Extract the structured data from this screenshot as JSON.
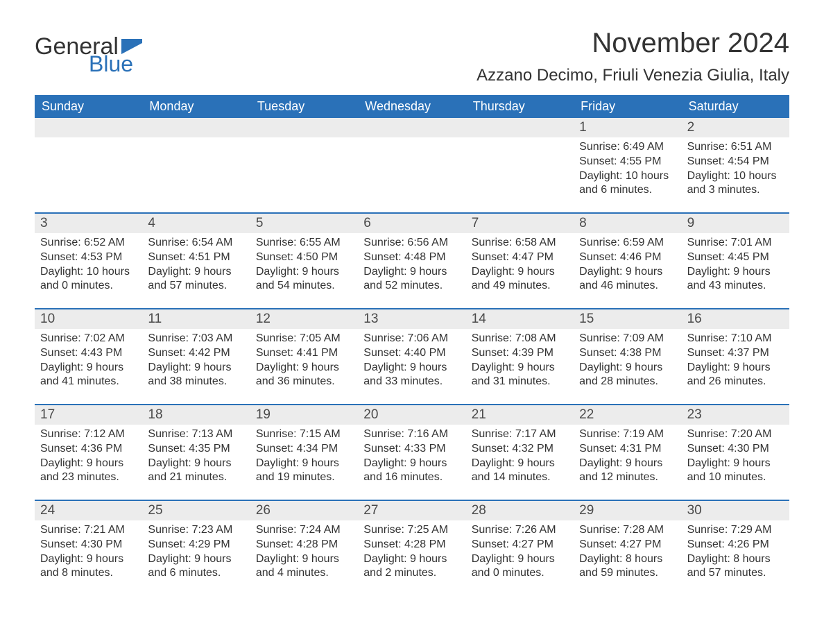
{
  "logo": {
    "general": "General",
    "blue": "Blue",
    "flag_color": "#2a71b8"
  },
  "title": "November 2024",
  "location": "Azzano Decimo, Friuli Venezia Giulia, Italy",
  "colors": {
    "header_bg": "#2a71b8",
    "header_text": "#ffffff",
    "daynum_bg": "#ececec",
    "text": "#333333",
    "row_border": "#2a71b8"
  },
  "days_of_week": [
    "Sunday",
    "Monday",
    "Tuesday",
    "Wednesday",
    "Thursday",
    "Friday",
    "Saturday"
  ],
  "weeks": [
    [
      {
        "blank": true
      },
      {
        "blank": true
      },
      {
        "blank": true
      },
      {
        "blank": true
      },
      {
        "blank": true
      },
      {
        "n": "1",
        "sr": "Sunrise: 6:49 AM",
        "ss": "Sunset: 4:55 PM",
        "dl": "Daylight: 10 hours and 6 minutes."
      },
      {
        "n": "2",
        "sr": "Sunrise: 6:51 AM",
        "ss": "Sunset: 4:54 PM",
        "dl": "Daylight: 10 hours and 3 minutes."
      }
    ],
    [
      {
        "n": "3",
        "sr": "Sunrise: 6:52 AM",
        "ss": "Sunset: 4:53 PM",
        "dl": "Daylight: 10 hours and 0 minutes."
      },
      {
        "n": "4",
        "sr": "Sunrise: 6:54 AM",
        "ss": "Sunset: 4:51 PM",
        "dl": "Daylight: 9 hours and 57 minutes."
      },
      {
        "n": "5",
        "sr": "Sunrise: 6:55 AM",
        "ss": "Sunset: 4:50 PM",
        "dl": "Daylight: 9 hours and 54 minutes."
      },
      {
        "n": "6",
        "sr": "Sunrise: 6:56 AM",
        "ss": "Sunset: 4:48 PM",
        "dl": "Daylight: 9 hours and 52 minutes."
      },
      {
        "n": "7",
        "sr": "Sunrise: 6:58 AM",
        "ss": "Sunset: 4:47 PM",
        "dl": "Daylight: 9 hours and 49 minutes."
      },
      {
        "n": "8",
        "sr": "Sunrise: 6:59 AM",
        "ss": "Sunset: 4:46 PM",
        "dl": "Daylight: 9 hours and 46 minutes."
      },
      {
        "n": "9",
        "sr": "Sunrise: 7:01 AM",
        "ss": "Sunset: 4:45 PM",
        "dl": "Daylight: 9 hours and 43 minutes."
      }
    ],
    [
      {
        "n": "10",
        "sr": "Sunrise: 7:02 AM",
        "ss": "Sunset: 4:43 PM",
        "dl": "Daylight: 9 hours and 41 minutes."
      },
      {
        "n": "11",
        "sr": "Sunrise: 7:03 AM",
        "ss": "Sunset: 4:42 PM",
        "dl": "Daylight: 9 hours and 38 minutes."
      },
      {
        "n": "12",
        "sr": "Sunrise: 7:05 AM",
        "ss": "Sunset: 4:41 PM",
        "dl": "Daylight: 9 hours and 36 minutes."
      },
      {
        "n": "13",
        "sr": "Sunrise: 7:06 AM",
        "ss": "Sunset: 4:40 PM",
        "dl": "Daylight: 9 hours and 33 minutes."
      },
      {
        "n": "14",
        "sr": "Sunrise: 7:08 AM",
        "ss": "Sunset: 4:39 PM",
        "dl": "Daylight: 9 hours and 31 minutes."
      },
      {
        "n": "15",
        "sr": "Sunrise: 7:09 AM",
        "ss": "Sunset: 4:38 PM",
        "dl": "Daylight: 9 hours and 28 minutes."
      },
      {
        "n": "16",
        "sr": "Sunrise: 7:10 AM",
        "ss": "Sunset: 4:37 PM",
        "dl": "Daylight: 9 hours and 26 minutes."
      }
    ],
    [
      {
        "n": "17",
        "sr": "Sunrise: 7:12 AM",
        "ss": "Sunset: 4:36 PM",
        "dl": "Daylight: 9 hours and 23 minutes."
      },
      {
        "n": "18",
        "sr": "Sunrise: 7:13 AM",
        "ss": "Sunset: 4:35 PM",
        "dl": "Daylight: 9 hours and 21 minutes."
      },
      {
        "n": "19",
        "sr": "Sunrise: 7:15 AM",
        "ss": "Sunset: 4:34 PM",
        "dl": "Daylight: 9 hours and 19 minutes."
      },
      {
        "n": "20",
        "sr": "Sunrise: 7:16 AM",
        "ss": "Sunset: 4:33 PM",
        "dl": "Daylight: 9 hours and 16 minutes."
      },
      {
        "n": "21",
        "sr": "Sunrise: 7:17 AM",
        "ss": "Sunset: 4:32 PM",
        "dl": "Daylight: 9 hours and 14 minutes."
      },
      {
        "n": "22",
        "sr": "Sunrise: 7:19 AM",
        "ss": "Sunset: 4:31 PM",
        "dl": "Daylight: 9 hours and 12 minutes."
      },
      {
        "n": "23",
        "sr": "Sunrise: 7:20 AM",
        "ss": "Sunset: 4:30 PM",
        "dl": "Daylight: 9 hours and 10 minutes."
      }
    ],
    [
      {
        "n": "24",
        "sr": "Sunrise: 7:21 AM",
        "ss": "Sunset: 4:30 PM",
        "dl": "Daylight: 9 hours and 8 minutes."
      },
      {
        "n": "25",
        "sr": "Sunrise: 7:23 AM",
        "ss": "Sunset: 4:29 PM",
        "dl": "Daylight: 9 hours and 6 minutes."
      },
      {
        "n": "26",
        "sr": "Sunrise: 7:24 AM",
        "ss": "Sunset: 4:28 PM",
        "dl": "Daylight: 9 hours and 4 minutes."
      },
      {
        "n": "27",
        "sr": "Sunrise: 7:25 AM",
        "ss": "Sunset: 4:28 PM",
        "dl": "Daylight: 9 hours and 2 minutes."
      },
      {
        "n": "28",
        "sr": "Sunrise: 7:26 AM",
        "ss": "Sunset: 4:27 PM",
        "dl": "Daylight: 9 hours and 0 minutes."
      },
      {
        "n": "29",
        "sr": "Sunrise: 7:28 AM",
        "ss": "Sunset: 4:27 PM",
        "dl": "Daylight: 8 hours and 59 minutes."
      },
      {
        "n": "30",
        "sr": "Sunrise: 7:29 AM",
        "ss": "Sunset: 4:26 PM",
        "dl": "Daylight: 8 hours and 57 minutes."
      }
    ]
  ]
}
